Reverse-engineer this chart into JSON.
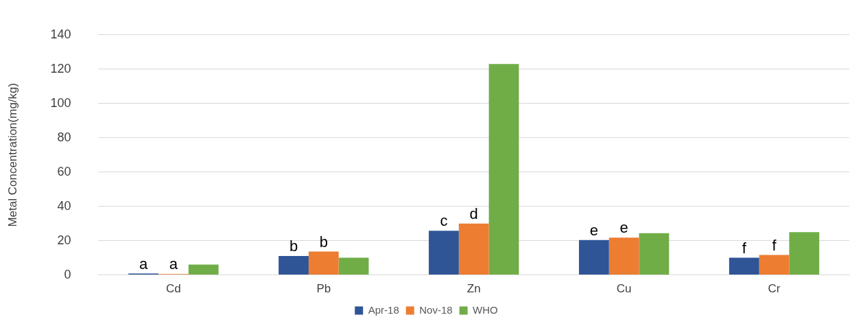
{
  "chart_data": {
    "type": "bar",
    "ylabel": "Metal Concentration(mg/kg)",
    "categories": [
      "Cd",
      "Pb",
      "Zn",
      "Cu",
      "Cr"
    ],
    "series": [
      {
        "name": "Apr-18",
        "color": "#2f5597",
        "values": [
          0.8,
          11,
          25.8,
          20.4,
          10
        ],
        "value_labels": [
          "a",
          "b",
          "c",
          "e",
          "f"
        ]
      },
      {
        "name": "Nov-18",
        "color": "#ed7d31",
        "values": [
          0.5,
          13.6,
          30,
          21.8,
          11.6
        ],
        "value_labels": [
          "a",
          "b",
          "d",
          "e",
          "f"
        ]
      },
      {
        "name": "WHO",
        "color": "#70ad47",
        "values": [
          6,
          10,
          123,
          24.4,
          25
        ]
      }
    ],
    "ylim": [
      0,
      140
    ],
    "yticks": [
      0,
      20,
      40,
      60,
      80,
      100,
      120,
      140
    ],
    "grid": "y",
    "legend": "bottom"
  }
}
